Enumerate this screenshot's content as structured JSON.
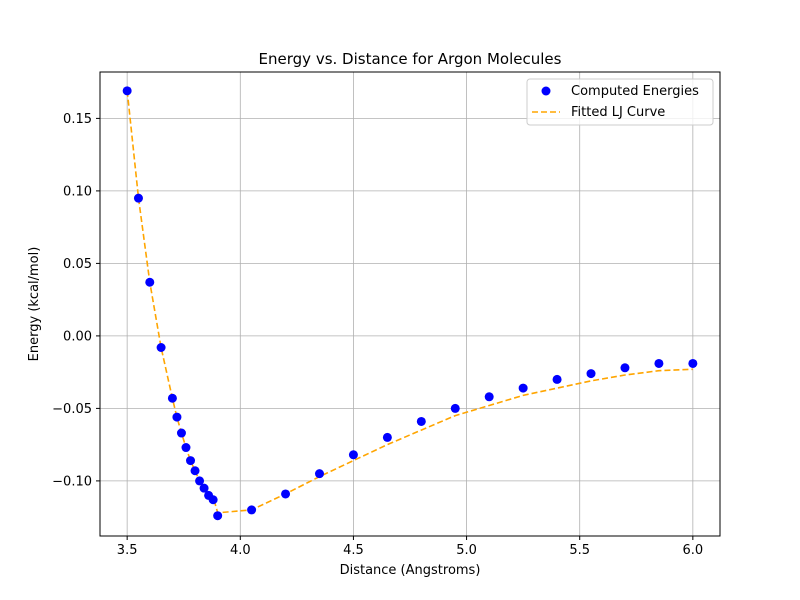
{
  "chart_data": {
    "type": "scatter",
    "title": "Energy vs. Distance for Argon Molecules",
    "xlabel": "Distance (Angstroms)",
    "ylabel": "Energy (kcal/mol)",
    "xlim": [
      3.38,
      6.12
    ],
    "ylim": [
      -0.138,
      0.182
    ],
    "xticks": [
      3.5,
      4.0,
      4.5,
      5.0,
      5.5,
      6.0
    ],
    "xtick_labels": [
      "3.5",
      "4.0",
      "4.5",
      "5.0",
      "5.5",
      "6.0"
    ],
    "yticks": [
      -0.1,
      -0.05,
      0.0,
      0.05,
      0.1,
      0.15
    ],
    "ytick_labels": [
      "−0.10",
      "−0.05",
      "0.00",
      "0.05",
      "0.10",
      "0.15"
    ],
    "grid": true,
    "legend_position": "top-right",
    "series": [
      {
        "name": "Computed Energies",
        "kind": "scatter",
        "color": "#0000ff",
        "x": [
          3.5,
          3.55,
          3.6,
          3.65,
          3.7,
          3.72,
          3.74,
          3.76,
          3.78,
          3.8,
          3.82,
          3.84,
          3.86,
          3.88,
          3.9,
          4.05,
          4.2,
          4.35,
          4.5,
          4.65,
          4.8,
          4.95,
          5.1,
          5.25,
          5.4,
          5.55,
          5.7,
          5.85,
          6.0
        ],
        "y": [
          0.169,
          0.095,
          0.037,
          -0.008,
          -0.043,
          -0.056,
          -0.067,
          -0.077,
          -0.086,
          -0.093,
          -0.1,
          -0.105,
          -0.11,
          -0.113,
          -0.124,
          -0.12,
          -0.109,
          -0.095,
          -0.082,
          -0.07,
          -0.059,
          -0.05,
          -0.042,
          -0.036,
          -0.03,
          -0.026,
          -0.022,
          -0.019,
          -0.019
        ]
      },
      {
        "name": "Fitted LJ Curve",
        "kind": "line",
        "dashed": true,
        "color": "#ffa500",
        "x": [
          3.5,
          3.55,
          3.6,
          3.65,
          3.7,
          3.72,
          3.74,
          3.76,
          3.78,
          3.8,
          3.82,
          3.84,
          3.86,
          3.88,
          3.9,
          4.05,
          4.2,
          4.35,
          4.5,
          4.65,
          4.8,
          4.95,
          5.1,
          5.25,
          5.4,
          5.55,
          5.7,
          5.85,
          6.0
        ],
        "y": [
          0.169,
          0.095,
          0.037,
          -0.008,
          -0.043,
          -0.056,
          -0.067,
          -0.077,
          -0.086,
          -0.093,
          -0.1,
          -0.105,
          -0.109,
          -0.111,
          -0.122,
          -0.12,
          -0.109,
          -0.097,
          -0.086,
          -0.075,
          -0.065,
          -0.055,
          -0.048,
          -0.041,
          -0.036,
          -0.031,
          -0.027,
          -0.024,
          -0.023
        ]
      }
    ]
  }
}
